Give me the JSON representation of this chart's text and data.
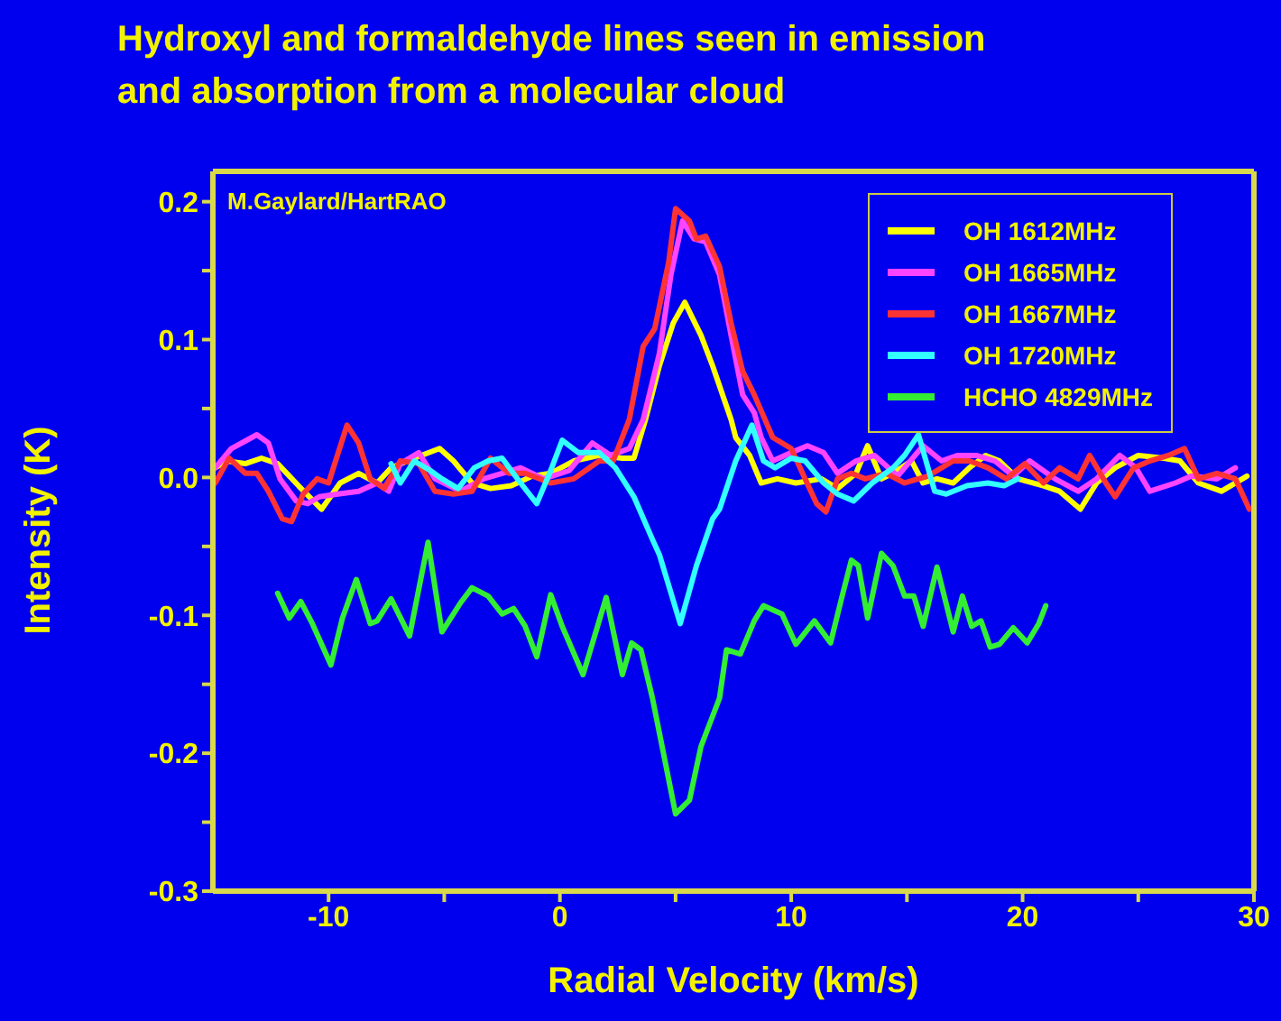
{
  "chart_data": {
    "type": "line",
    "title": "Hydroxyl and formaldehyde lines seen in emission\nand absorption from a molecular cloud",
    "xlabel": "Radial Velocity (km/s)",
    "ylabel": "Intensity (K)",
    "annotations": [
      "M.Gaylard/HartRAO"
    ],
    "xlim": [
      -15,
      30
    ],
    "ylim": [
      -0.3,
      0.222
    ],
    "xticks": [
      -10,
      {
        "value": -5,
        "label": null
      },
      0,
      {
        "value": 5,
        "label": null
      },
      10,
      {
        "value": 15,
        "label": null
      },
      20,
      {
        "value": 25,
        "label": null
      },
      30
    ],
    "yticks": [
      -0.3,
      {
        "value": -0.25,
        "label": null
      },
      -0.2,
      {
        "value": -0.15,
        "label": null
      },
      -0.1,
      {
        "value": -0.05,
        "label": null
      },
      {
        "value": 0,
        "label": "0.0"
      },
      {
        "value": 0.05,
        "label": null
      },
      0.1,
      {
        "value": 0.15,
        "label": null
      },
      0.2
    ],
    "grid": false,
    "legend": "top right",
    "marker": "none",
    "line_style": "solid",
    "series": [
      {
        "name": "OH 1612MHz",
        "color": "#ffff00",
        "x": [
          -14.9,
          -14.4,
          -13.6,
          -12.9,
          -12.2,
          -11.3,
          -10.3,
          -9.5,
          -8.7,
          -7.9,
          -7.3,
          -6.3,
          -5.2,
          -4.6,
          -3.8,
          -3.0,
          -2.1,
          -1.2,
          -0.4,
          0.6,
          1.7,
          2.7,
          3.2,
          3.7,
          4.3,
          4.9,
          5.4,
          6.1,
          6.6,
          7.4,
          7.6,
          8.2,
          8.7,
          9.4,
          10.2,
          11.3,
          12.0,
          12.8,
          13.3,
          13.9,
          14.4,
          15.2,
          15.7,
          16.3,
          17.0,
          17.7,
          18.4,
          19.0,
          19.8,
          20.9,
          21.6,
          22.5,
          23.2,
          24.0,
          25.0,
          26.1,
          26.8,
          27.6,
          28.6,
          29.7
        ],
        "values": [
          0.007,
          0.012,
          0.01,
          0.014,
          0.01,
          -0.006,
          -0.023,
          -0.004,
          0.003,
          -0.004,
          0.007,
          0.014,
          0.021,
          0.012,
          -0.004,
          -0.008,
          -0.006,
          0.001,
          0.003,
          0.012,
          0.016,
          0.014,
          0.014,
          0.042,
          0.081,
          0.112,
          0.127,
          0.103,
          0.081,
          0.042,
          0.029,
          0.016,
          -0.004,
          -0.001,
          -0.004,
          -0.001,
          -0.008,
          0.003,
          0.023,
          -0.001,
          0.003,
          0.012,
          -0.004,
          -0.001,
          -0.004,
          0.007,
          0.016,
          0.012,
          -0.001,
          -0.006,
          -0.01,
          -0.023,
          -0.004,
          0.007,
          0.016,
          0.014,
          0.012,
          -0.004,
          -0.01,
          0.001
        ]
      },
      {
        "name": "OH 1665MHz",
        "color": "#ff44ff",
        "x": [
          -14.9,
          -14.2,
          -13.1,
          -12.6,
          -12.1,
          -11.4,
          -10.9,
          -10.4,
          -9.6,
          -8.7,
          -7.9,
          -7.4,
          -6.9,
          -6.1,
          -5.4,
          -4.3,
          -3.3,
          -2.5,
          -1.7,
          -0.7,
          0.4,
          1.4,
          2.2,
          3.0,
          3.6,
          4.3,
          4.8,
          5.3,
          5.8,
          6.3,
          6.9,
          7.4,
          7.9,
          8.4,
          8.7,
          9.2,
          10.0,
          10.7,
          11.4,
          12.0,
          12.8,
          13.6,
          14.6,
          15.7,
          16.5,
          17.2,
          18.0,
          18.8,
          19.6,
          20.3,
          21.4,
          22.4,
          23.2,
          24.2,
          24.9,
          25.5,
          26.6,
          27.3,
          28.4,
          29.2
        ],
        "values": [
          0.007,
          0.021,
          0.031,
          0.025,
          -0.001,
          -0.017,
          -0.019,
          -0.014,
          -0.012,
          -0.01,
          -0.004,
          -0.01,
          0.01,
          0.018,
          -0.001,
          -0.01,
          -0.001,
          0.003,
          0.007,
          -0.001,
          0.005,
          0.025,
          0.016,
          0.021,
          0.042,
          0.09,
          0.147,
          0.186,
          0.173,
          0.171,
          0.147,
          0.103,
          0.06,
          0.047,
          0.029,
          0.012,
          0.018,
          0.023,
          0.018,
          0.003,
          0.012,
          0.016,
          0.001,
          0.023,
          0.012,
          0.016,
          0.016,
          0.012,
          0.001,
          0.012,
          -0.001,
          -0.01,
          -0.001,
          0.016,
          0.007,
          -0.01,
          -0.004,
          0.001,
          -0.001,
          0.007
        ]
      },
      {
        "name": "OH 1667MHz",
        "color": "#ff3333",
        "x": [
          -14.9,
          -14.3,
          -13.6,
          -13.1,
          -12.6,
          -12.0,
          -11.6,
          -11.1,
          -10.5,
          -10.0,
          -9.2,
          -8.7,
          -8.2,
          -7.6,
          -6.9,
          -6.1,
          -5.4,
          -4.6,
          -3.8,
          -3.0,
          -2.2,
          -1.5,
          -0.4,
          0.6,
          1.7,
          2.3,
          3.0,
          3.6,
          4.1,
          4.7,
          5.0,
          5.6,
          5.9,
          6.3,
          6.9,
          7.4,
          7.9,
          8.4,
          9.2,
          10.0,
          10.6,
          11.1,
          11.5,
          12.0,
          12.6,
          13.2,
          14.1,
          14.9,
          15.9,
          17.0,
          17.7,
          18.5,
          19.3,
          20.1,
          20.9,
          21.6,
          22.4,
          22.9,
          23.6,
          24.0,
          24.8,
          25.5,
          26.3,
          27.0,
          27.6,
          28.4,
          29.2,
          29.8
        ],
        "values": [
          -0.004,
          0.014,
          0.003,
          0.003,
          -0.01,
          -0.03,
          -0.032,
          -0.012,
          -0.001,
          -0.004,
          0.038,
          0.025,
          -0.001,
          -0.008,
          0.012,
          0.01,
          -0.01,
          -0.012,
          -0.01,
          0.014,
          0.003,
          0.003,
          -0.004,
          -0.001,
          0.012,
          0.012,
          0.042,
          0.095,
          0.108,
          0.156,
          0.195,
          0.186,
          0.173,
          0.175,
          0.153,
          0.112,
          0.077,
          0.06,
          0.029,
          0.021,
          -0.001,
          -0.019,
          -0.025,
          -0.001,
          0.003,
          -0.001,
          0.003,
          -0.004,
          0.001,
          0.012,
          0.012,
          0.007,
          -0.001,
          0.01,
          -0.004,
          0.007,
          -0.001,
          0.016,
          -0.004,
          -0.014,
          0.007,
          0.012,
          0.016,
          0.021,
          -0.001,
          0.003,
          -0.001,
          -0.023
        ]
      },
      {
        "name": "OH 1720MHz",
        "color": "#33ffff",
        "x": [
          -7.3,
          -6.9,
          -6.3,
          -5.6,
          -5.1,
          -4.4,
          -3.7,
          -3.1,
          -2.5,
          -1.7,
          -1.0,
          -0.4,
          0.1,
          0.8,
          1.7,
          2.4,
          3.2,
          4.0,
          4.3,
          5.2,
          5.9,
          6.6,
          6.9,
          7.6,
          8.3,
          8.8,
          9.3,
          10.0,
          10.6,
          11.4,
          12.0,
          12.7,
          13.5,
          14.4,
          14.9,
          15.5,
          16.2,
          16.7,
          17.6,
          18.5,
          19.2,
          19.8
        ],
        "values": [
          0.01,
          -0.004,
          0.012,
          0.005,
          -0.001,
          -0.008,
          0.007,
          0.012,
          0.014,
          -0.004,
          -0.019,
          0.005,
          0.027,
          0.018,
          0.018,
          0.007,
          -0.014,
          -0.045,
          -0.056,
          -0.106,
          -0.064,
          -0.03,
          -0.023,
          0.012,
          0.038,
          0.012,
          0.007,
          0.014,
          0.012,
          -0.004,
          -0.012,
          -0.017,
          -0.004,
          0.007,
          0.016,
          0.031,
          -0.01,
          -0.012,
          -0.006,
          -0.004,
          -0.006,
          -0.001
        ]
      },
      {
        "name": "HCHO 4829MHz",
        "color": "#33ee33",
        "x": [
          -12.2,
          -11.7,
          -11.2,
          -10.7,
          -9.9,
          -9.4,
          -8.8,
          -8.2,
          -7.9,
          -7.3,
          -6.5,
          -5.7,
          -5.1,
          -4.3,
          -3.8,
          -3.1,
          -2.5,
          -2.0,
          -1.5,
          -1.0,
          -0.4,
          0.1,
          1.0,
          2.0,
          2.7,
          3.1,
          3.5,
          4.0,
          5.0,
          5.6,
          6.1,
          6.9,
          7.2,
          7.8,
          8.4,
          8.8,
          9.6,
          10.2,
          11.0,
          11.7,
          12.2,
          12.6,
          12.9,
          13.3,
          13.9,
          14.4,
          14.9,
          15.3,
          15.7,
          16.3,
          17.0,
          17.4,
          17.8,
          18.2,
          18.6,
          19.0,
          19.6,
          20.2,
          20.7,
          21.0
        ],
        "values": [
          -0.084,
          -0.102,
          -0.09,
          -0.106,
          -0.136,
          -0.102,
          -0.074,
          -0.106,
          -0.104,
          -0.088,
          -0.115,
          -0.047,
          -0.112,
          -0.091,
          -0.08,
          -0.086,
          -0.099,
          -0.095,
          -0.108,
          -0.13,
          -0.085,
          -0.108,
          -0.143,
          -0.087,
          -0.143,
          -0.12,
          -0.125,
          -0.16,
          -0.244,
          -0.234,
          -0.195,
          -0.16,
          -0.125,
          -0.128,
          -0.104,
          -0.093,
          -0.099,
          -0.121,
          -0.104,
          -0.12,
          -0.086,
          -0.06,
          -0.064,
          -0.102,
          -0.055,
          -0.064,
          -0.086,
          -0.086,
          -0.108,
          -0.065,
          -0.112,
          -0.086,
          -0.108,
          -0.104,
          -0.123,
          -0.121,
          -0.109,
          -0.12,
          -0.106,
          -0.093
        ]
      }
    ]
  }
}
